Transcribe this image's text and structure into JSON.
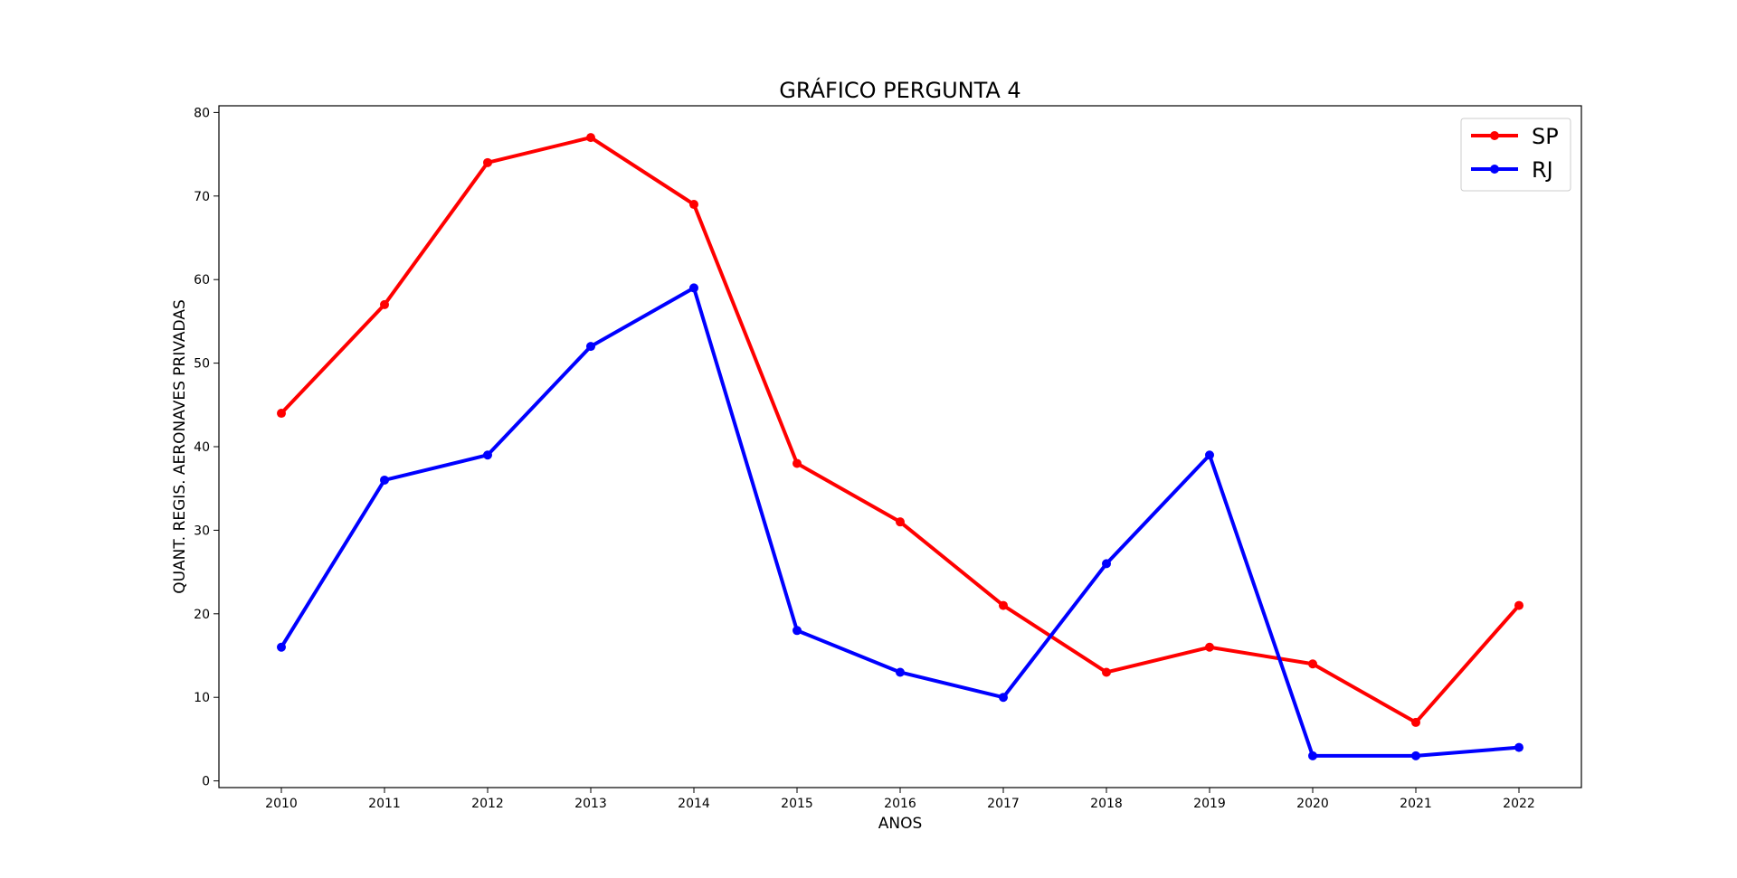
{
  "chart_data": {
    "type": "line",
    "title": "GRÁFICO PERGUNTA 4",
    "xlabel": "ANOS",
    "ylabel": "QUANT. REGIS. AERONAVES PRIVADAS",
    "x": [
      "2010",
      "2011",
      "2012",
      "2013",
      "2014",
      "2015",
      "2016",
      "2017",
      "2018",
      "2019",
      "2020",
      "2021",
      "2022"
    ],
    "yticks": [
      0,
      10,
      20,
      30,
      40,
      50,
      60,
      70,
      80
    ],
    "ylim": [
      -0.8,
      80.8
    ],
    "grid": false,
    "legend_position": "top-right",
    "series": [
      {
        "name": "SP",
        "color": "#ff0000",
        "values": [
          44,
          57,
          74,
          77,
          69,
          38,
          31,
          21,
          13,
          16,
          14,
          7,
          21
        ]
      },
      {
        "name": "RJ",
        "color": "#0000ff",
        "values": [
          16,
          36,
          39,
          52,
          59,
          18,
          13,
          10,
          26,
          39,
          3,
          3,
          4
        ]
      }
    ]
  }
}
